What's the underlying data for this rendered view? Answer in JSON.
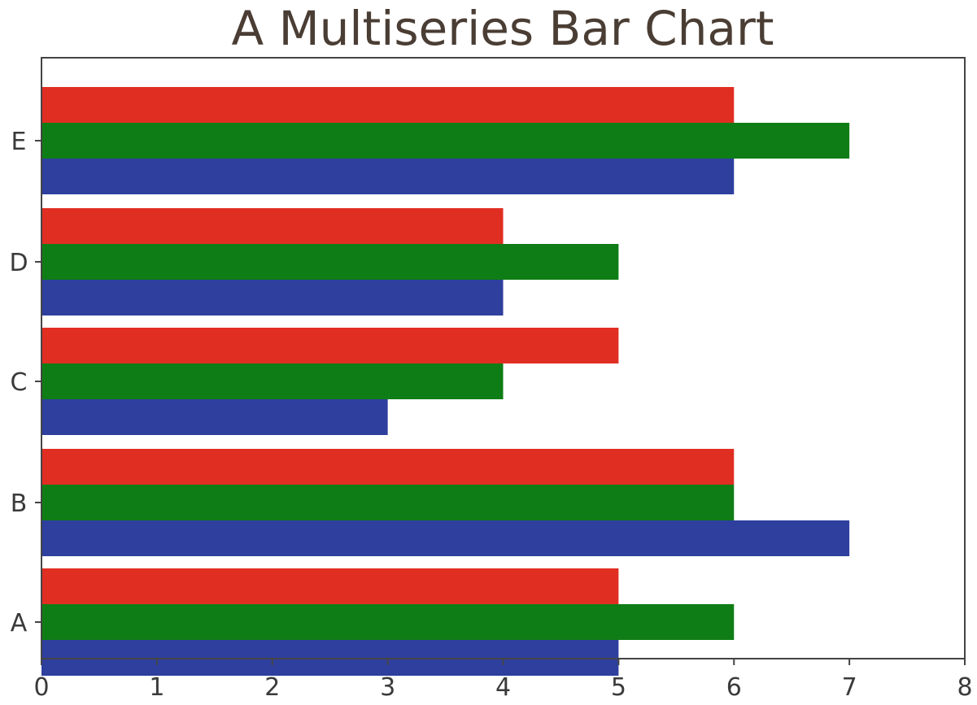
{
  "chart_data": {
    "type": "bar",
    "orientation": "horizontal",
    "title": "A Multiseries Bar Chart",
    "xlabel": "",
    "ylabel": "",
    "categories": [
      "A",
      "B",
      "C",
      "D",
      "E"
    ],
    "xlim": [
      0,
      8
    ],
    "xticks": [
      "0",
      "1",
      "2",
      "3",
      "4",
      "5",
      "6",
      "7",
      "8"
    ],
    "grid": false,
    "series": [
      {
        "color": "#2e3f9e",
        "values": [
          5,
          7,
          3,
          4,
          6
        ]
      },
      {
        "color": "#0f7d15",
        "values": [
          6,
          6,
          4,
          5,
          7
        ]
      },
      {
        "color": "#e12e22",
        "values": [
          5,
          6,
          5,
          4,
          6
        ]
      }
    ]
  }
}
